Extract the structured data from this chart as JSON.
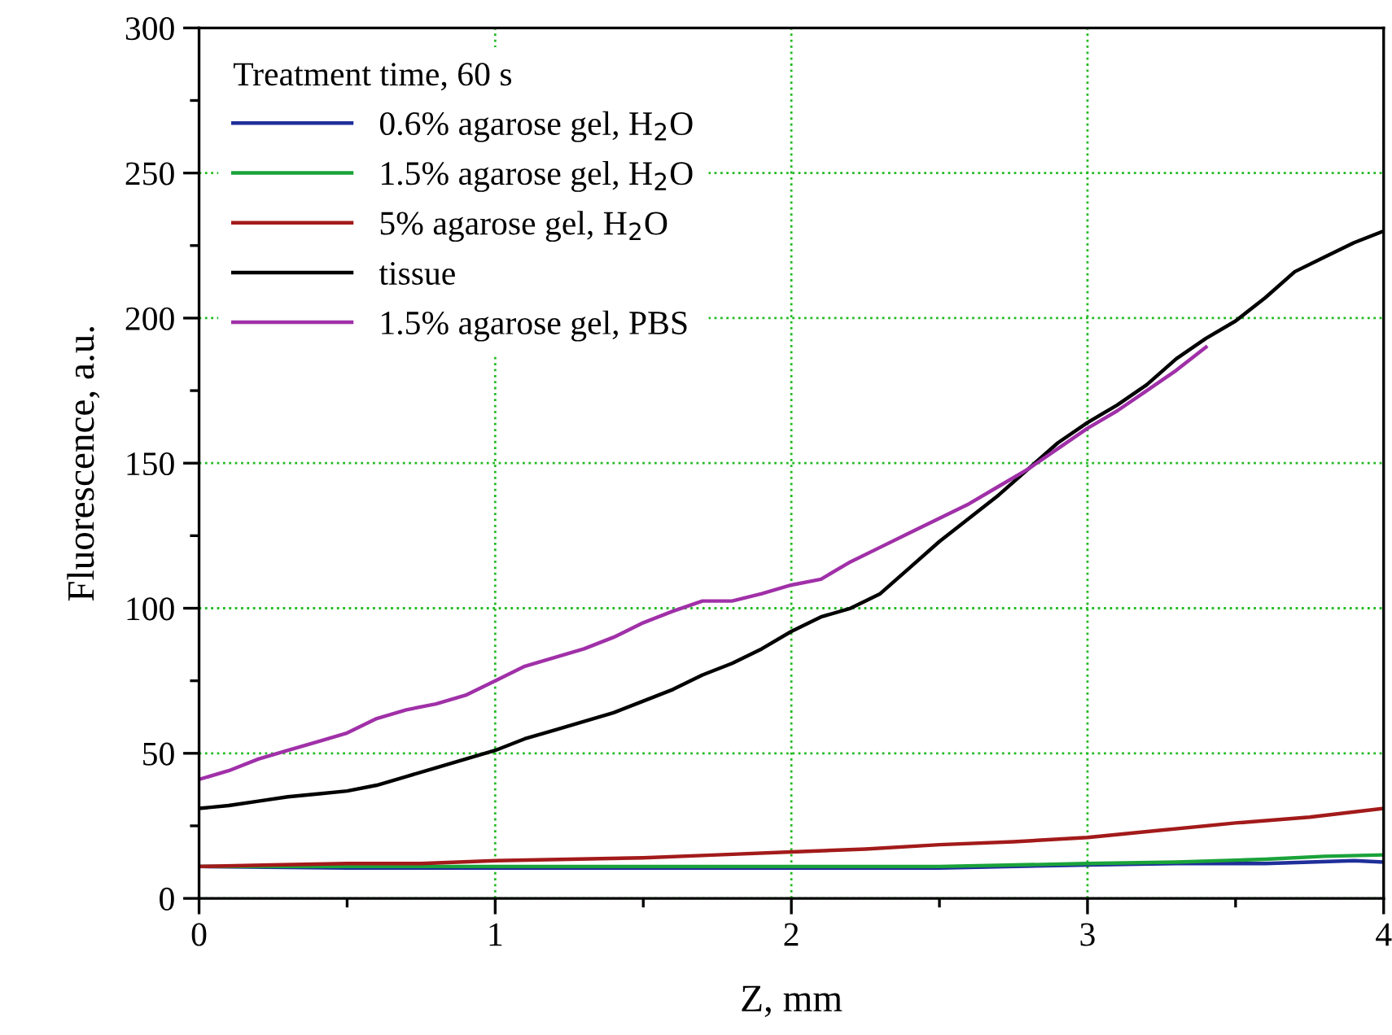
{
  "chart_data": {
    "type": "line",
    "xlabel": "Z, mm",
    "ylabel": "Fluorescence, a.u.",
    "legend_title": "Treatment time, 60 s",
    "legend": "top left",
    "grid": true,
    "line_style": "solid",
    "marker": "none",
    "xlim": [
      0,
      4
    ],
    "ylim": [
      0,
      300
    ],
    "xticks": [
      0,
      1,
      2,
      3,
      4
    ],
    "yticks": [
      0,
      50,
      100,
      150,
      200,
      250,
      300
    ],
    "series": [
      {
        "name": "0.6% agarose gel, H$_{2}$O",
        "color": "#1f2f9a",
        "x": [
          0,
          0.5,
          1,
          1.5,
          2,
          2.5,
          3,
          3.3,
          3.6,
          3.9,
          4
        ],
        "values": [
          11,
          10.5,
          10.5,
          10.5,
          10.5,
          10.5,
          11.5,
          12,
          12,
          13,
          12.5
        ]
      },
      {
        "name": "1.5% agarose gel, H$_{2}$O",
        "color": "#1aa33a",
        "x": [
          0,
          0.5,
          1,
          1.5,
          2,
          2.5,
          3,
          3.3,
          3.6,
          3.8,
          4
        ],
        "values": [
          11,
          11,
          11,
          11,
          11,
          11,
          12,
          12.5,
          13.5,
          14.5,
          15
        ]
      },
      {
        "name": "5% agarose gel, H$_{2}$O",
        "color": "#a31a1a",
        "x": [
          0,
          0.25,
          0.5,
          0.75,
          1,
          1.25,
          1.5,
          1.75,
          2,
          2.25,
          2.5,
          2.75,
          3,
          3.25,
          3.5,
          3.75,
          4
        ],
        "values": [
          11,
          11.5,
          12,
          12,
          13,
          13.5,
          14,
          15,
          16,
          17,
          18.5,
          19.5,
          21,
          23.5,
          26,
          28,
          31
        ]
      },
      {
        "name": "tissue",
        "color": "#000000",
        "x": [
          0,
          0.1,
          0.2,
          0.3,
          0.4,
          0.5,
          0.6,
          0.7,
          0.8,
          0.9,
          1.0,
          1.1,
          1.2,
          1.3,
          1.4,
          1.5,
          1.6,
          1.7,
          1.8,
          1.9,
          2.0,
          2.1,
          2.2,
          2.3,
          2.4,
          2.5,
          2.6,
          2.7,
          2.8,
          2.9,
          3.0,
          3.1,
          3.2,
          3.3,
          3.4,
          3.5,
          3.6,
          3.7,
          3.8,
          3.9,
          4.0
        ],
        "values": [
          31,
          32,
          33.5,
          35,
          36,
          37,
          39,
          42,
          45,
          48,
          51,
          55,
          58,
          61,
          64,
          68,
          72,
          77,
          81,
          86,
          92,
          97,
          100,
          105,
          114,
          123,
          131,
          139,
          148,
          157,
          164,
          170,
          177,
          186,
          193,
          199,
          207,
          216,
          221,
          226,
          230
        ]
      },
      {
        "name": "1.5% agarose gel, PBS",
        "color": "#a030a8",
        "x": [
          0,
          0.1,
          0.2,
          0.3,
          0.4,
          0.5,
          0.6,
          0.7,
          0.8,
          0.9,
          1.0,
          1.1,
          1.2,
          1.3,
          1.4,
          1.5,
          1.6,
          1.7,
          1.8,
          1.9,
          2.0,
          2.1,
          2.2,
          2.3,
          2.4,
          2.5,
          2.6,
          2.7,
          2.8,
          2.9,
          3.0,
          3.1,
          3.2,
          3.3,
          3.4
        ],
        "values": [
          41,
          44,
          48,
          51,
          54,
          57,
          62,
          65,
          67,
          70,
          75,
          80,
          83,
          86,
          90,
          95,
          99,
          102.5,
          102.5,
          105,
          108,
          110,
          116,
          121,
          126,
          131,
          136,
          142,
          148,
          155,
          162,
          168,
          175,
          182,
          190
        ]
      }
    ]
  }
}
